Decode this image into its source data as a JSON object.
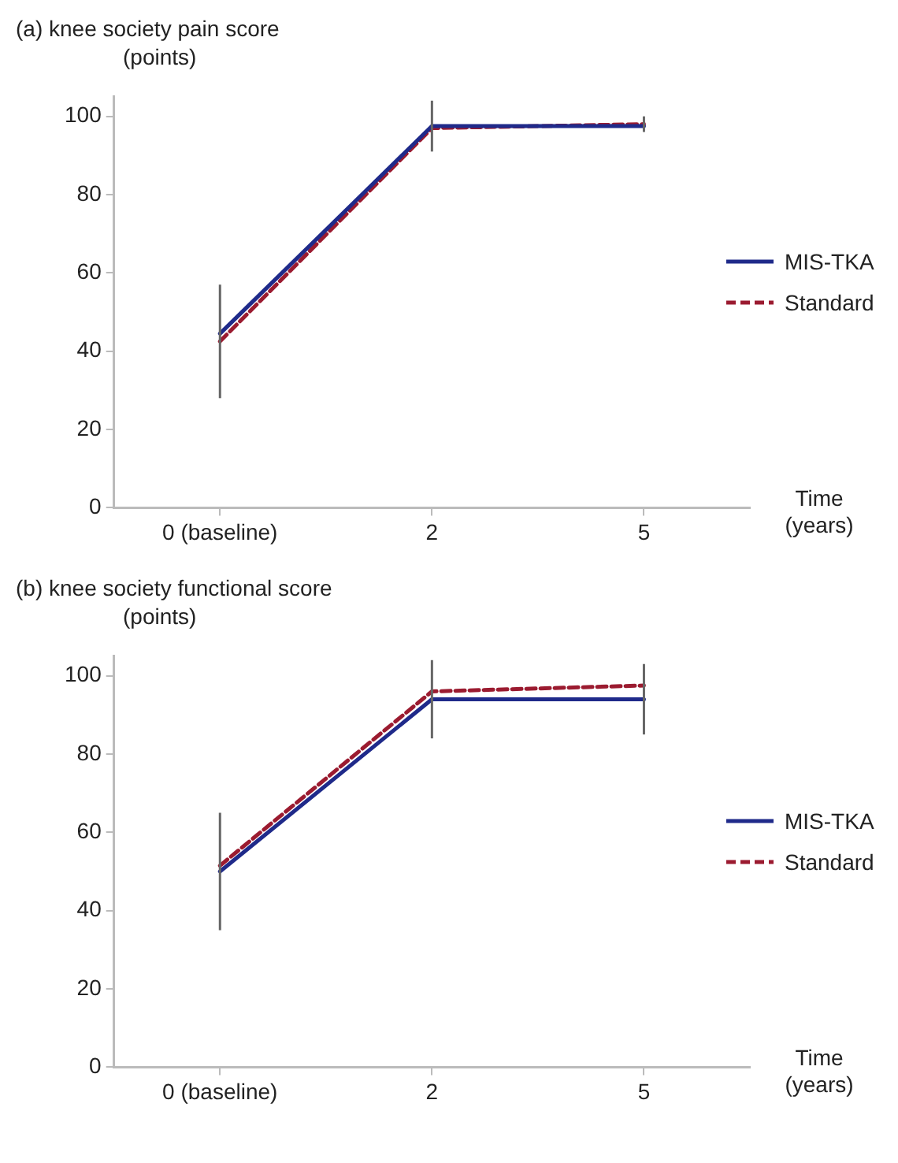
{
  "chart_data": [
    {
      "type": "line",
      "title": "(a) knee society pain score",
      "ylabel": "(points)",
      "xlabel": "Time (years)",
      "categories": [
        "0 (baseline)",
        "2",
        "5"
      ],
      "series": [
        {
          "name": "MIS-TKA",
          "color": "#1f2a8a",
          "line_style": "solid",
          "values": [
            44.5,
            97.5,
            97.5
          ],
          "errors": [
            [
              28,
              57
            ],
            [
              91,
              104
            ],
            [
              96,
              100
            ]
          ]
        },
        {
          "name": "Standard",
          "color": "#9b1b30",
          "line_style": "dashed",
          "values": [
            42.5,
            97,
            98
          ]
        }
      ],
      "ylim": [
        0,
        105
      ],
      "yticks": [
        0,
        20,
        40,
        60,
        80,
        100
      ],
      "grid": false,
      "legend": "right",
      "marker": "none"
    },
    {
      "type": "line",
      "title": "(b) knee society functional score",
      "ylabel": "(points)",
      "xlabel": "Time (years)",
      "categories": [
        "0 (baseline)",
        "2",
        "5"
      ],
      "series": [
        {
          "name": "MIS-TKA",
          "color": "#1f2a8a",
          "line_style": "solid",
          "values": [
            50,
            94,
            94
          ],
          "errors": [
            [
              35,
              65
            ],
            [
              84,
              104
            ],
            [
              85,
              103
            ]
          ]
        },
        {
          "name": "Standard",
          "color": "#9b1b30",
          "line_style": "dashed",
          "values": [
            51.5,
            96,
            97.5
          ]
        }
      ],
      "ylim": [
        0,
        105
      ],
      "yticks": [
        0,
        20,
        40,
        60,
        80,
        100
      ],
      "grid": false,
      "legend": "right",
      "marker": "none"
    }
  ]
}
